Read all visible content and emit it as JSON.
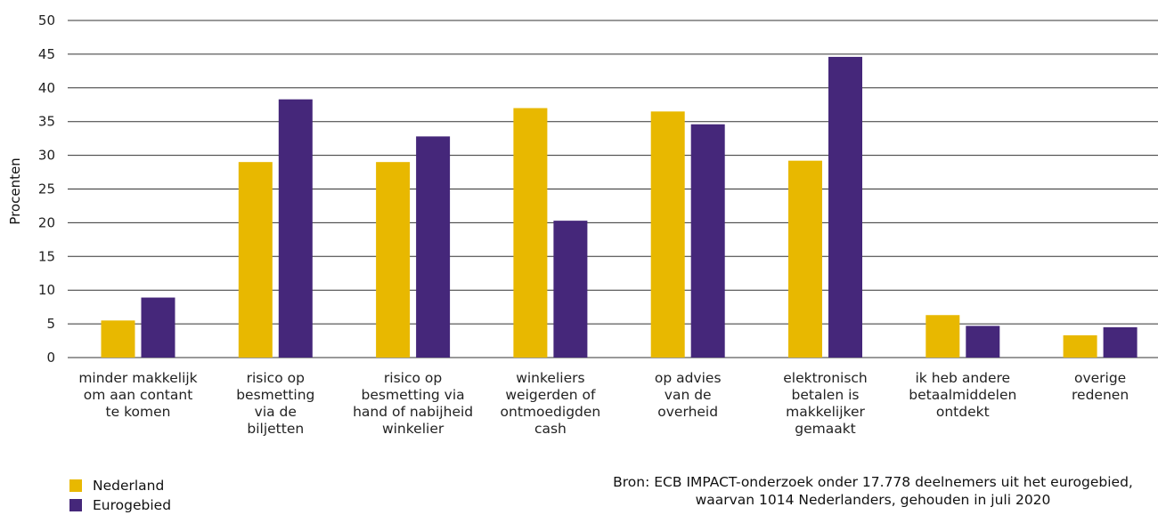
{
  "chart_data": {
    "type": "bar",
    "ylabel": "Procenten",
    "ylim": [
      0,
      50
    ],
    "yticks": [
      0,
      5,
      10,
      15,
      20,
      25,
      30,
      35,
      40,
      45,
      50
    ],
    "grid": true,
    "legend_position": "bottom-left",
    "categories": [
      [
        "minder makkelijk",
        "om aan contant",
        "te komen"
      ],
      [
        "risico op",
        "besmetting",
        "via de",
        "biljetten"
      ],
      [
        "risico op",
        "besmetting via",
        "hand of nabijheid",
        "winkelier"
      ],
      [
        "winkeliers",
        "weigerden of",
        "ontmoedigden",
        "cash"
      ],
      [
        "op advies",
        "van de",
        "overheid"
      ],
      [
        "elektronisch",
        "betalen is",
        "makkelijker",
        "gemaakt"
      ],
      [
        "ik heb andere",
        "betaalmiddelen",
        "ontdekt"
      ],
      [
        "overige",
        "redenen"
      ]
    ],
    "series": [
      {
        "name": "Nederland",
        "color": "#E8B800",
        "values": [
          5.5,
          29,
          29,
          37,
          36.5,
          29.2,
          6.3,
          3.3
        ]
      },
      {
        "name": "Eurogebied",
        "color": "#45277A",
        "values": [
          8.9,
          38.3,
          32.8,
          20.3,
          34.6,
          44.6,
          4.7,
          4.5
        ]
      }
    ]
  },
  "source": {
    "line1": "Bron: ECB IMPACT-onderzoek onder 17.778 deelnemers uit het eurogebied,",
    "line2": "waarvan 1014 Nederlanders, gehouden in juli 2020"
  }
}
